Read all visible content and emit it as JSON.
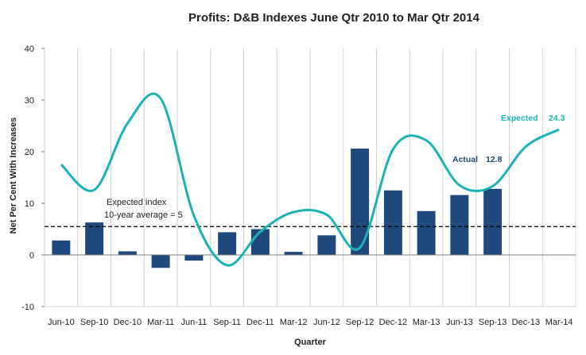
{
  "chart_data": {
    "type": "bar",
    "title": "Profits: D&B Indexes June Qtr 2010 to Mar Qtr 2014",
    "xlabel": "Quarter",
    "ylabel": "Net Per Cent With Increases",
    "ylim": [
      -10,
      40
    ],
    "yticks": [
      "-10",
      "0",
      "10",
      "20",
      "30",
      "40"
    ],
    "grid": "vertical",
    "categories": [
      "Jun-10",
      "Sep-10",
      "Dec-10",
      "Mar-11",
      "Jun-11",
      "Sep-11",
      "Dec-11",
      "Mar-12",
      "Jun-12",
      "Sep-12",
      "Dec-12",
      "Mar-13",
      "Jun-13",
      "Sep-13",
      "Dec-13",
      "Mar-14"
    ],
    "series": [
      {
        "name": "Actual",
        "type": "bar",
        "color": "#1f497d",
        "values": [
          2.8,
          6.3,
          0.7,
          -2.5,
          -1.1,
          4.4,
          5.0,
          0.6,
          3.8,
          20.6,
          12.5,
          8.5,
          11.6,
          12.8,
          null,
          null
        ]
      },
      {
        "name": "Expected",
        "type": "line",
        "smooth": true,
        "color": "#1ab2b2",
        "values": [
          17.5,
          12.6,
          25.5,
          30.3,
          7.6,
          -2.0,
          4.5,
          8.3,
          7.8,
          1.4,
          20.5,
          22.2,
          13.5,
          13.3,
          21.0,
          24.3
        ]
      }
    ],
    "reference_line": {
      "value": 5.5,
      "style": "dashed",
      "label_line1": "Expected index",
      "label_line2": "10-year average = 5"
    },
    "annotations": {
      "expected_label": "Expected",
      "expected_value": "24.3",
      "actual_label": "Actual",
      "actual_value": "12.8"
    }
  }
}
